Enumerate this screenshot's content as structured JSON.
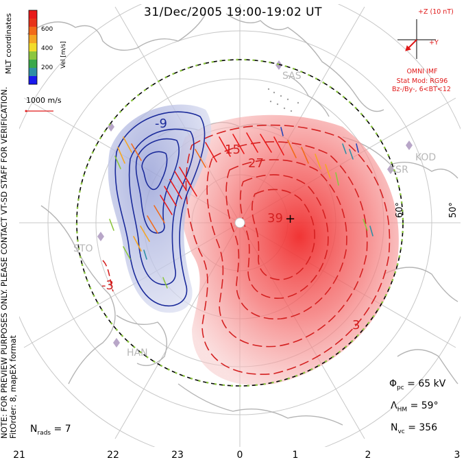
{
  "title": "31/Dec/2005 19:00-19:02 UT",
  "side_note": {
    "line1": "NOTE: FOR PREVIEW PURPOSES ONLY. PLEASE CONTACT VT-SD STAFF FOR VERIFICATION.",
    "line2": "FitOrder: 8, mapEX format"
  },
  "coordinates_label": "MLT coordinates",
  "colorbar": {
    "label": "Vel [m/s]",
    "ticks": [
      "600",
      "400",
      "200"
    ],
    "colors": [
      "#e81a1a",
      "#f26b1a",
      "#f5a623",
      "#f2dc2a",
      "#8cc63f",
      "#3aa84a",
      "#2f8fa5",
      "#2746b8",
      "#1a1aee"
    ]
  },
  "reference_vector": {
    "label": "1000 m/s",
    "color": "#e01818"
  },
  "imf": {
    "bz_label": "+Z (10 nT)",
    "by_label": "+Y",
    "omni": "OMNI IMF",
    "model": "Stat Mod: RG96",
    "condition": "Bz-/By-, 6<BT<12",
    "color": "#e01818"
  },
  "stats": {
    "phi_symbol": "Φ",
    "phi_sub": "pc",
    "phi_value": " = 65 kV",
    "lambda_symbol": "Λ",
    "lambda_sub": "HM",
    "lambda_value": " = 59°",
    "nvc_symbol": "N",
    "nvc_sub": "vc",
    "nvc_value": " = 356",
    "nrads_symbol": "N",
    "nrads_sub": "rads",
    "nrads_value": " = 7"
  },
  "mlt_ticks": [
    "21",
    "22",
    "23",
    "0",
    "1",
    "2",
    "3"
  ],
  "latitude_labels": [
    "60°",
    "50°"
  ],
  "stations": [
    "SAS",
    "KOD",
    "KSR",
    "STO",
    "HAN"
  ],
  "contours": {
    "negative_labels": [
      "-9",
      "-3"
    ],
    "positive_labels": [
      "15",
      "27",
      "39",
      "3"
    ],
    "negative_color": "#1a2a9a",
    "positive_color": "#d42020"
  },
  "potential_extrema": {
    "max_marker": "+"
  }
}
